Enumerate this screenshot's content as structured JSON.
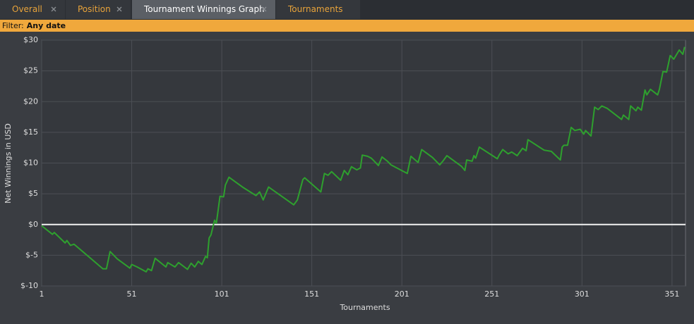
{
  "tabs": [
    {
      "label": "Overall",
      "active": false
    },
    {
      "label": "Position",
      "active": false
    },
    {
      "label": "Tournament Winnings Graph",
      "active": true
    },
    {
      "label": "Tournaments",
      "active": false
    }
  ],
  "filter": {
    "label": "Filter:",
    "value": "Any date"
  },
  "chart_data": {
    "type": "line",
    "x_label": "Tournaments",
    "y_label": "Net Winnings in USD",
    "color": "#2ea02e",
    "grid": true,
    "xlim": [
      1,
      358.5
    ],
    "xticks": [
      1,
      51,
      101,
      151,
      201,
      251,
      301,
      351
    ],
    "ylim": [
      -10,
      30
    ],
    "yticks": [
      {
        "value": -10,
        "label": "$-10"
      },
      {
        "value": -5,
        "label": "$-5"
      },
      {
        "value": 0,
        "label": "$0"
      },
      {
        "value": 5,
        "label": "$5"
      },
      {
        "value": 10,
        "label": "$10"
      },
      {
        "value": 15,
        "label": "$15"
      },
      {
        "value": 20,
        "label": "$20"
      },
      {
        "value": 25,
        "label": "$25"
      },
      {
        "value": 30,
        "label": "$30"
      }
    ],
    "x": [
      1,
      7,
      8,
      14,
      15,
      17,
      19,
      35,
      37,
      39,
      43,
      50,
      51,
      54,
      59,
      60,
      62,
      64,
      70,
      71,
      75,
      77,
      82,
      84,
      86,
      88,
      90,
      92,
      93,
      94,
      95,
      97,
      98,
      100,
      102,
      103,
      105,
      113,
      120,
      122,
      124,
      127,
      141,
      143,
      146,
      147,
      156,
      158,
      160,
      162,
      167,
      169,
      171,
      173,
      176,
      178,
      179,
      182,
      184,
      185,
      188,
      190,
      193,
      195,
      204,
      206,
      210,
      212,
      218,
      222,
      224,
      226,
      234,
      236,
      237,
      240,
      241,
      242,
      244,
      254,
      255,
      257,
      260,
      262,
      265,
      268,
      270,
      271,
      280,
      284,
      289,
      290,
      291,
      293,
      295,
      297,
      300,
      302,
      303,
      306,
      308,
      310,
      312,
      315,
      323,
      324,
      327,
      328,
      331,
      332,
      334,
      336,
      337,
      339,
      343,
      344,
      346,
      348,
      350,
      352,
      355,
      357,
      358
    ],
    "values": [
      -0.2,
      -1.6,
      -1.3,
      -3.0,
      -2.6,
      -3.4,
      -3.2,
      -7.2,
      -7.2,
      -4.4,
      -5.6,
      -7.1,
      -6.5,
      -6.9,
      -7.7,
      -7.2,
      -7.5,
      -5.5,
      -6.9,
      -6.2,
      -6.9,
      -6.2,
      -7.3,
      -6.3,
      -6.9,
      -6.0,
      -6.5,
      -5.2,
      -5.4,
      -2.2,
      -1.7,
      0.7,
      0.2,
      4.6,
      4.5,
      6.4,
      7.7,
      6.0,
      4.7,
      5.3,
      4.0,
      6.1,
      3.2,
      4.0,
      7.3,
      7.6,
      5.3,
      8.3,
      8.0,
      8.6,
      7.2,
      8.8,
      8.1,
      9.4,
      8.9,
      9.2,
      11.3,
      11.1,
      10.8,
      10.5,
      9.6,
      11.0,
      10.3,
      9.7,
      8.3,
      11.1,
      10.1,
      12.2,
      10.9,
      9.7,
      10.4,
      11.2,
      9.5,
      8.8,
      10.5,
      10.3,
      11.2,
      10.8,
      12.6,
      10.7,
      11.3,
      12.2,
      11.5,
      11.8,
      11.2,
      12.4,
      12.0,
      13.8,
      12.1,
      11.9,
      10.5,
      12.6,
      12.9,
      12.9,
      15.8,
      15.3,
      15.5,
      14.7,
      15.3,
      14.4,
      19.1,
      18.7,
      19.3,
      18.9,
      17.1,
      17.8,
      17.1,
      19.3,
      18.5,
      19.1,
      18.6,
      21.9,
      21.1,
      22.0,
      21.1,
      22.0,
      24.9,
      24.8,
      27.5,
      26.9,
      28.4,
      27.7,
      28.9
    ]
  }
}
